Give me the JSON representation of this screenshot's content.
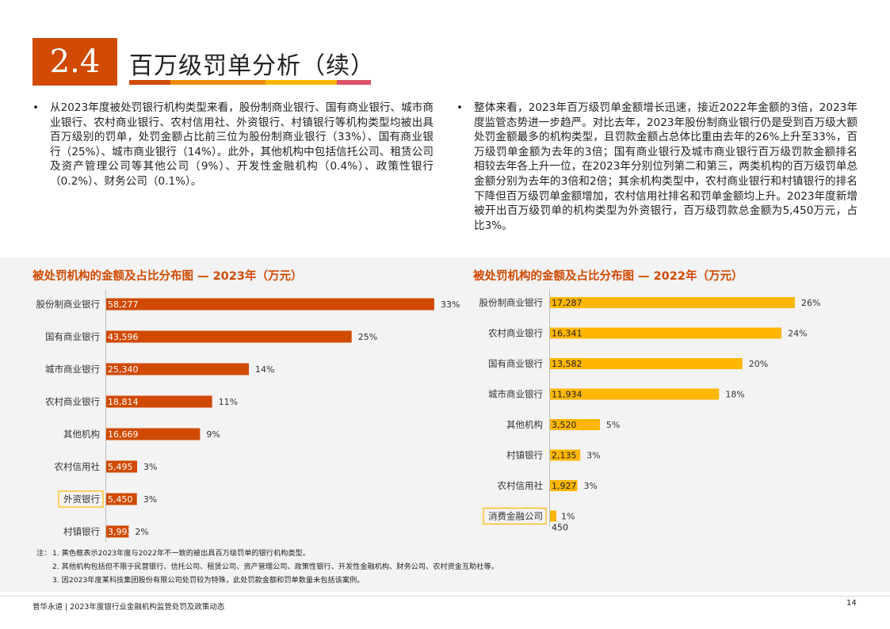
{
  "section": {
    "number": "2.4",
    "title": "百万级罚单分析（续）",
    "rule_colors": [
      "#d04a02",
      "#eb8c00",
      "#ffb600",
      "#db536a"
    ]
  },
  "left_text": {
    "bullet": "•",
    "text": "从2023年度被处罚银行机构类型来看，股份制商业银行、国有商业银行、城市商业银行、农村商业银行、农村信用社、外资银行、村镇银行等机构类型均被出具百万级别的罚单，处罚金额占比前三位为股份制商业银行（33%）、国有商业银行（25%）、城市商业银行（14%）。此外，其他机构中包括信托公司、租赁公司及资产管理公司等其他公司（9%）、开发性金融机构（0.4%）、政策性银行（0.2%）、财务公司（0.1%）。"
  },
  "right_text": {
    "bullet": "•",
    "text": "整体来看，2023年百万级罚单金额增长迅速，接近2022年金额的3倍，2023年度监管态势进一步趋严。对比去年，2023年股份制商业银行仍是受到百万级大额处罚金额最多的机构类型，且罚款金额占总体比重由去年的26%上升至33%，百万级罚单金额为去年的3倍；国有商业银行及城市商业银行百万级罚款金额排名相较去年各上升一位，在2023年分别位列第二和第三，两类机构的百万级罚单总金额分别为去年的3倍和2倍；其余机构类型中，农村商业银行和村镇银行的排名下降但百万级罚单金额增加，农村信用社排名和罚单金额均上升。2023年度新增被开出百万级罚单的机构类型为外资银行，百万级罚款总金额为5,450万元，占比3%。"
  },
  "chart_data": [
    {
      "type": "bar",
      "orientation": "horizontal",
      "title": "被处罚机构的金额及占比分布图 — 2023年（万元）",
      "color": "#d04a02",
      "highlight_color": "#ffb600",
      "categories": [
        "股份制商业银行",
        "国有商业银行",
        "城市商业银行",
        "农村商业银行",
        "其他机构",
        "农村信用社",
        "外资银行",
        "村镇银行"
      ],
      "values": [
        58277,
        43596,
        25340,
        18814,
        16669,
        5495,
        5450,
        3993
      ],
      "value_labels": [
        "58,277",
        "43,596",
        "25,340",
        "18,814",
        "16,669",
        "5,495",
        "5,450",
        "3,993"
      ],
      "share_labels": [
        "33%",
        "25%",
        "14%",
        "11%",
        "9%",
        "3%",
        "3%",
        "2%"
      ],
      "highlighted": [
        false,
        false,
        false,
        false,
        false,
        false,
        true,
        false
      ]
    },
    {
      "type": "bar",
      "orientation": "horizontal",
      "title": "被处罚机构的金额及占比分布图 — 2022年（万元）",
      "color": "#ffb600",
      "highlight_color": "#ffb600",
      "categories": [
        "股份制商业银行",
        "农村商业银行",
        "国有商业银行",
        "城市商业银行",
        "其他机构",
        "村镇银行",
        "农村信用社",
        "消费金融公司"
      ],
      "values": [
        17287,
        16341,
        13582,
        11934,
        3520,
        2135,
        1927,
        450
      ],
      "value_labels": [
        "17,287",
        "16,341",
        "13,582",
        "11,934",
        "3,520",
        "2,135",
        "1,927",
        "450"
      ],
      "share_labels": [
        "26%",
        "24%",
        "20%",
        "18%",
        "5%",
        "3%",
        "3%",
        "1%"
      ],
      "highlighted": [
        false,
        false,
        false,
        false,
        false,
        false,
        false,
        true
      ]
    }
  ],
  "notes": {
    "head": "注：",
    "items": [
      "1. 黄色框表示2023年度与2022年不一致的被出具百万级罚单的银行机构类型。",
      "2. 其他机构包括但不限于民营银行、信托公司、租赁公司、资产管理公司、政策性银行、开发性金融机构、财务公司、农村资金互助社等。",
      "3. 因2023年度某科技集团股份有限公司处罚较为特殊，此处罚款金额和罚单数量未包括该案例。"
    ]
  },
  "footer": {
    "text": "普华永道 | 2023年度银行业金融机构监管处罚及政策动态",
    "page": "14"
  }
}
